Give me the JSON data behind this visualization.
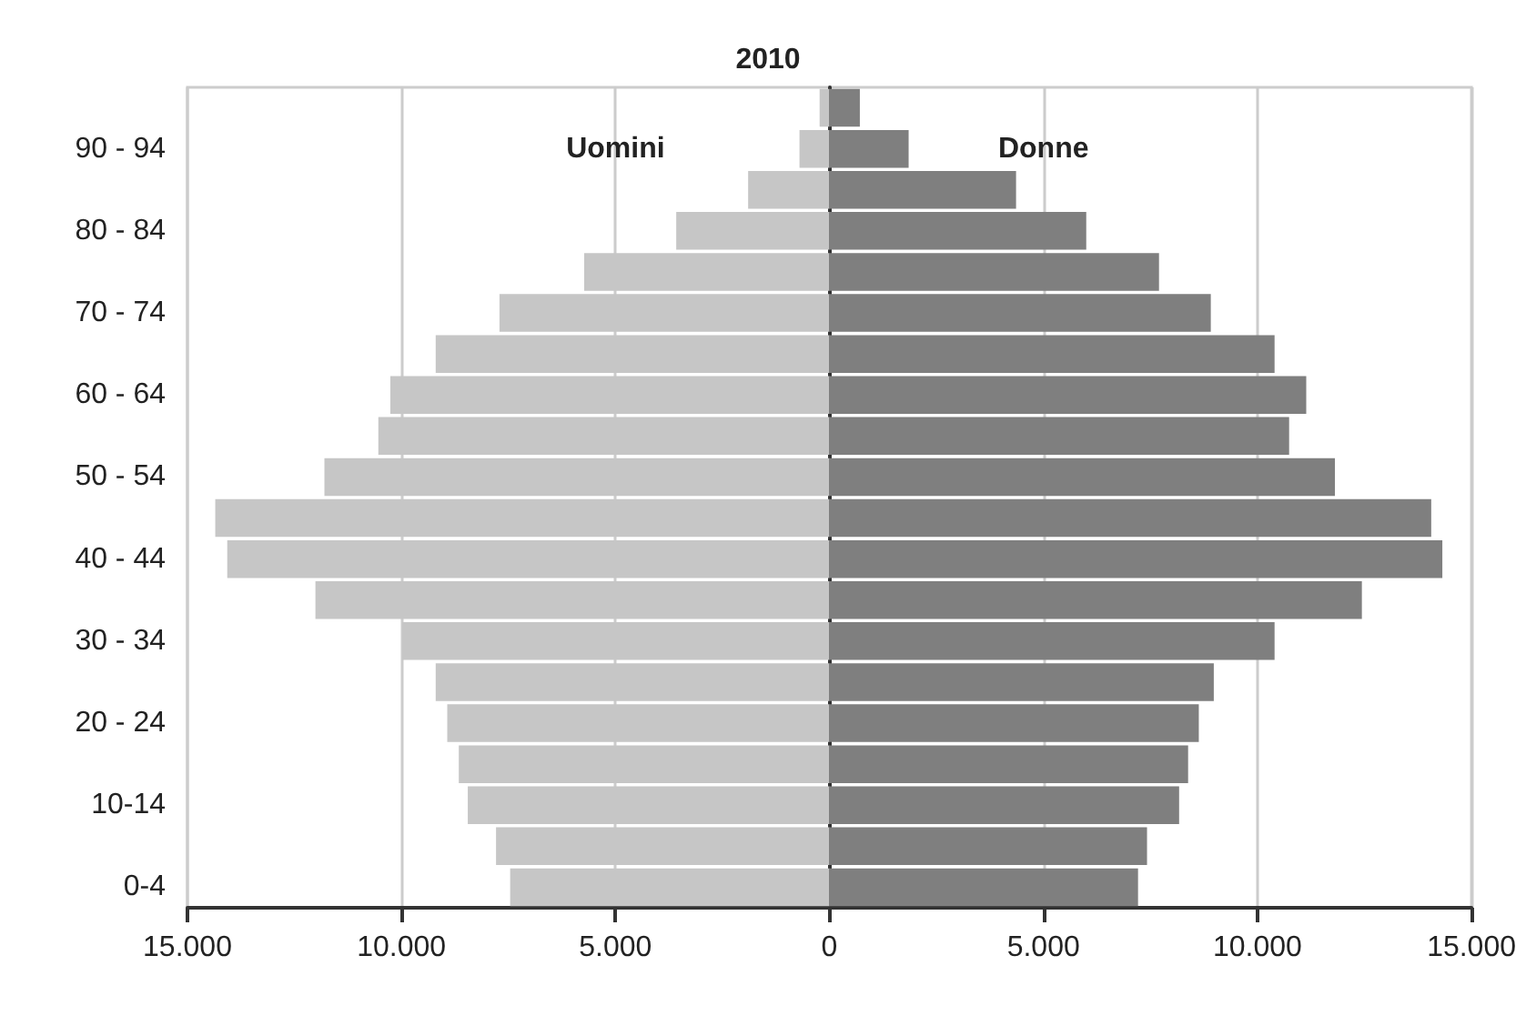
{
  "chart_data": {
    "type": "bar",
    "orientation": "horizontal",
    "title": "2010",
    "categories": [
      null,
      "90 - 94",
      null,
      "80 - 84",
      null,
      "70 - 74",
      null,
      "60 - 64",
      null,
      "50 - 54",
      null,
      "40 - 44",
      null,
      "30 - 34",
      null,
      "20 - 24",
      null,
      "10-14",
      null,
      "0-4"
    ],
    "series": [
      {
        "name": "Uomini",
        "color": "#c6c6c6",
        "values": [
          -230,
          -700,
          -1900,
          -3580,
          -5730,
          -7710,
          -9200,
          -10260,
          -10540,
          -11800,
          -14350,
          -14070,
          -12010,
          -9980,
          -9200,
          -8930,
          -8660,
          -8450,
          -7790,
          -7460
        ]
      },
      {
        "name": "Donne",
        "color": "#7f7f7f",
        "values": [
          710,
          1850,
          4360,
          6000,
          7700,
          8910,
          10400,
          11140,
          10740,
          11810,
          14060,
          14320,
          12440,
          10400,
          8980,
          8630,
          8380,
          8170,
          7420,
          7210
        ]
      }
    ],
    "xlim": [
      -15000,
      15000
    ],
    "xticks": [
      {
        "value": -15000,
        "label": "15.000"
      },
      {
        "value": -10000,
        "label": "10.000"
      },
      {
        "value": -5000,
        "label": "5.000"
      },
      0,
      {
        "value": 5000,
        "label": "5.000"
      },
      {
        "value": 10000,
        "label": "10.000"
      },
      {
        "value": 15000,
        "label": "15.000"
      }
    ],
    "stacked": true,
    "grid": "x",
    "legend": false
  }
}
